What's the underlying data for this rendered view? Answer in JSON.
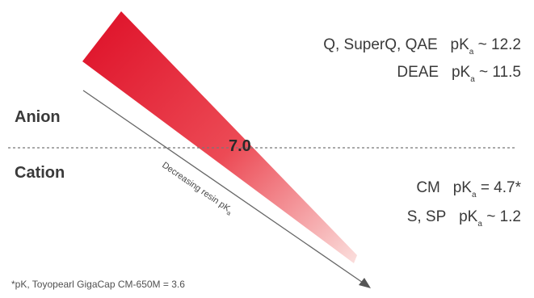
{
  "regions": {
    "anion": "Anion",
    "cation": "Cation"
  },
  "crossover_value": "7.0",
  "arrow_label": {
    "text": "Decreasing resin pK",
    "subscript": "a"
  },
  "anion_resins": [
    {
      "name": "Q, SuperQ, QAE",
      "pk_prefix": "pK",
      "pk_sub": "a",
      "pk_rel": "~ 12.2"
    },
    {
      "name": "DEAE",
      "pk_prefix": "pK",
      "pk_sub": "a",
      "pk_rel": "~ 11.5"
    }
  ],
  "cation_resins": [
    {
      "name": "CM",
      "pk_prefix": "pK",
      "pk_sub": "a",
      "pk_rel": "= 4.7*"
    },
    {
      "name": "S, SP",
      "pk_prefix": "pK",
      "pk_sub": "a",
      "pk_rel": "~ 1.2"
    }
  ],
  "footnote": "*pK, Toyopearl GigaCap CM-650M = 3.6",
  "colors": {
    "gradient_start": "#e0182e",
    "gradient_mid": "#ec4a55",
    "gradient_end": "#fbe0de",
    "text": "#3a3a3a",
    "line": "#777777"
  }
}
